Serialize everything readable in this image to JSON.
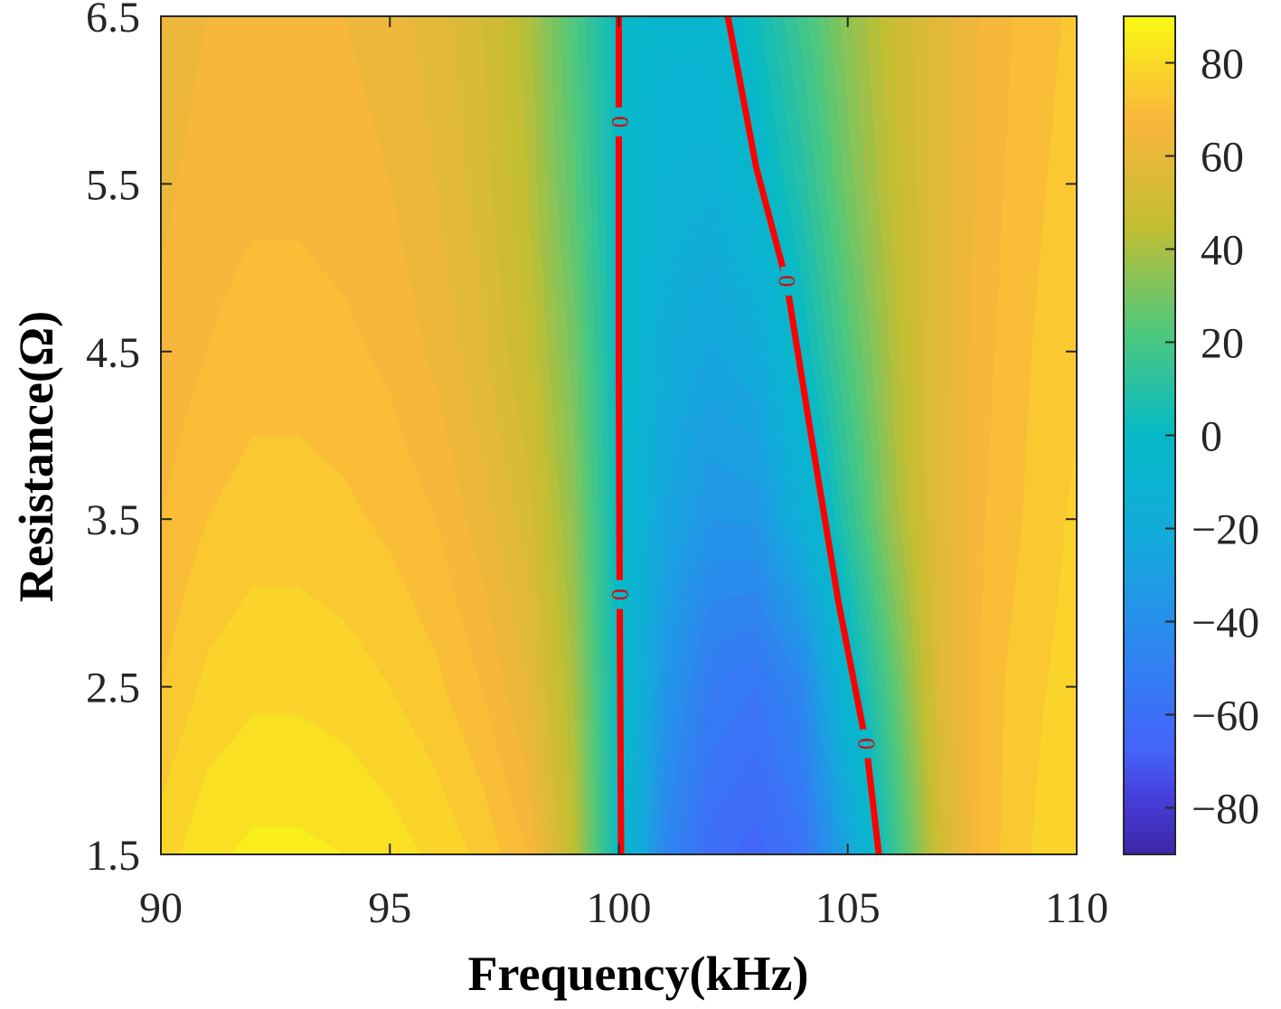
{
  "chart_data": {
    "type": "heatmap",
    "subtype": "filled-contour",
    "title": "",
    "xlabel": "Frequency(kHz)",
    "ylabel": "Resistance(Ω)",
    "xlim": [
      90,
      110
    ],
    "ylim": [
      1.5,
      6.5
    ],
    "xticks": [
      "90",
      "95",
      "100",
      "105",
      "110"
    ],
    "yticks": [
      "1.5",
      "2.5",
      "3.5",
      "4.5",
      "5.5",
      "6.5"
    ],
    "colormap": "parula",
    "clim": [
      -90,
      90
    ],
    "colorbar_ticks": [
      "80",
      "60",
      "40",
      "20",
      "0",
      "−20",
      "−40",
      "−60",
      "−80"
    ],
    "colorbar_tick_values": [
      80,
      60,
      40,
      20,
      0,
      -20,
      -40,
      -60,
      -80
    ],
    "colorbar_location": "right",
    "grid": false,
    "x": [
      90,
      91,
      92,
      93,
      94,
      95,
      96,
      97,
      98,
      99,
      100,
      101,
      102,
      103,
      104,
      105,
      106,
      107,
      108,
      109,
      110
    ],
    "y": [
      1.5,
      2.5,
      3.5,
      4.5,
      5.5,
      6.5
    ],
    "z": [
      [
        78,
        83,
        85,
        85,
        84,
        82,
        79,
        75,
        68,
        45,
        0,
        -45,
        -62,
        -66,
        -58,
        -25,
        15,
        50,
        70,
        76,
        80
      ],
      [
        72,
        77,
        79,
        79,
        78,
        76,
        73,
        68,
        60,
        40,
        0,
        -35,
        -52,
        -56,
        -45,
        -5,
        25,
        56,
        70,
        75,
        78
      ],
      [
        68,
        72,
        74,
        74,
        73,
        71,
        68,
        62,
        54,
        35,
        0,
        -25,
        -36,
        -35,
        -15,
        12,
        38,
        58,
        68,
        73,
        77
      ],
      [
        65,
        68,
        70,
        70,
        69,
        67,
        63,
        57,
        48,
        30,
        0,
        -18,
        -25,
        -20,
        0,
        22,
        42,
        58,
        67,
        72,
        75
      ],
      [
        63,
        66,
        67,
        67,
        66,
        64,
        60,
        54,
        44,
        25,
        0,
        -12,
        -15,
        -5,
        10,
        30,
        46,
        58,
        66,
        71,
        74
      ],
      [
        61,
        64,
        65,
        65,
        64,
        62,
        58,
        52,
        42,
        22,
        0,
        -7,
        -5,
        3,
        18,
        35,
        48,
        58,
        65,
        70,
        73
      ]
    ],
    "contour_lines": [
      {
        "level_label": "0",
        "color": "#ff0000",
        "points": [
          [
            100.05,
            1.5
          ],
          [
            100.02,
            3.0
          ],
          [
            100.0,
            4.5
          ],
          [
            100.0,
            6.5
          ]
        ],
        "label_positions": [
          [
            100.02,
            5.87
          ],
          [
            100.02,
            3.05
          ]
        ]
      },
      {
        "level_label": "0",
        "color": "#ff0000",
        "points": [
          [
            102.38,
            6.5
          ],
          [
            103.0,
            5.6
          ],
          [
            103.66,
            4.92
          ],
          [
            104.2,
            4.0
          ],
          [
            104.8,
            3.0
          ],
          [
            105.4,
            2.16
          ],
          [
            105.68,
            1.5
          ]
        ],
        "label_positions": [
          [
            103.66,
            4.92
          ],
          [
            105.4,
            2.16
          ]
        ]
      }
    ]
  }
}
